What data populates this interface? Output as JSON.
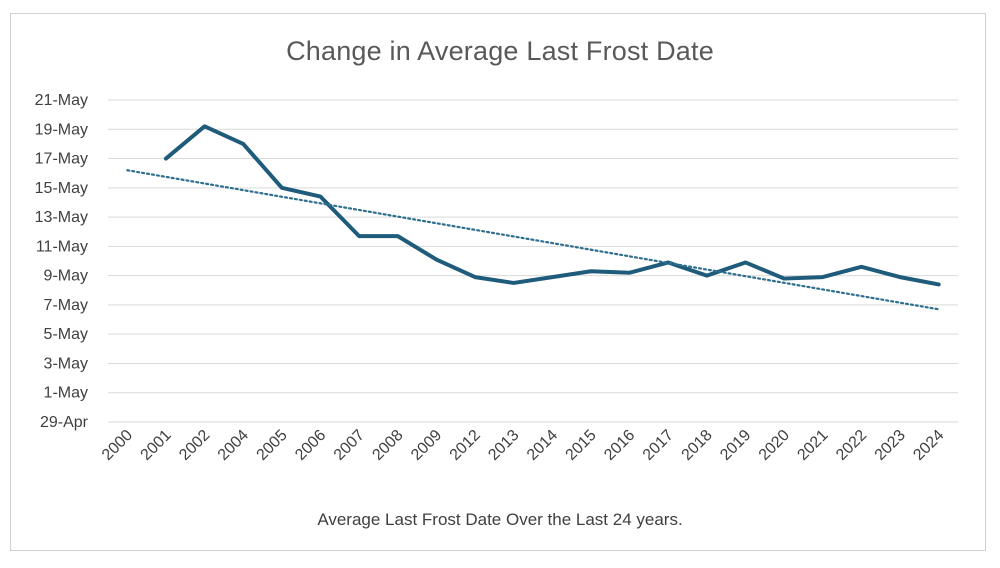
{
  "chart_data": {
    "type": "line",
    "title": "Change in Average Last Frost Date",
    "caption": "Average Last Frost Date Over the Last 24 years.",
    "x": [
      "2000",
      "2001",
      "2002",
      "2004",
      "2005",
      "2006",
      "2007",
      "2008",
      "2009",
      "2012",
      "2013",
      "2014",
      "2015",
      "2016",
      "2017",
      "2018",
      "2019",
      "2020",
      "2021",
      "2022",
      "2023",
      "2024"
    ],
    "y_tick_labels": [
      "29-Apr",
      "1-May",
      "3-May",
      "5-May",
      "7-May",
      "9-May",
      "11-May",
      "13-May",
      "15-May",
      "17-May",
      "19-May",
      "21-May"
    ],
    "ylim": [
      "2000-04-29",
      "2000-05-21"
    ],
    "series": [
      {
        "values": [
          null,
          "2000-05-17",
          "2000-05-19.2",
          "2000-05-18",
          "2000-05-15",
          "2000-05-14.4",
          "2000-05-11.7",
          "2000-05-11.7",
          "2000-05-10.1",
          "2000-05-08.9",
          "2000-05-08.5",
          "2000-05-08.9",
          "2000-05-09.3",
          "2000-05-09.2",
          "2000-05-09.9",
          "2000-05-09",
          "2000-05-09.9",
          "2000-05-08.8",
          "2000-05-08.9",
          "2000-05-09.6",
          "2000-05-08.9",
          "2000-05-08.4"
        ],
        "color": "#1f5b7a",
        "style": "solid"
      },
      {
        "trendline": true,
        "values_start_end": [
          "2000-05-16.2",
          "2000-05-06.7"
        ],
        "color": "#2e6f8e",
        "style": "dotted"
      }
    ],
    "grid": true,
    "legend": "none"
  }
}
